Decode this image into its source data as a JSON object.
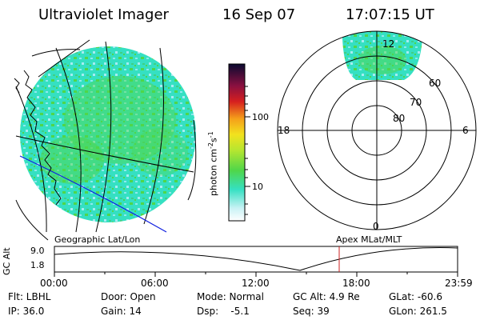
{
  "header": {
    "instrument": "Ultraviolet Imager",
    "date": "16 Sep 07",
    "time": "17:07:15 UT"
  },
  "colors": {
    "aurora_teal": "#35e0c2",
    "aurora_green": "#4fd64a",
    "aurora_cyan": "#8ee9ef",
    "grid_blue": "#1020e0",
    "marker_red": "#cc2020"
  },
  "colorbar": {
    "unit_label": "photon cm",
    "unit_sup1": "-2",
    "unit_mid": "s",
    "unit_sup2": "-1",
    "ticks": [
      "100",
      "10"
    ]
  },
  "left_map": {
    "caption": "Geographic Lat/Lon"
  },
  "polar_plot": {
    "caption": "Apex  MLat/MLT",
    "mlt_labels": {
      "top": "12",
      "bottom": "0",
      "left": "18",
      "right": "6"
    },
    "lat_labels": [
      "60",
      "70",
      "80"
    ]
  },
  "altitude_plot": {
    "ylabel": "GC Alt",
    "y_ticks": [
      "9.0",
      "1.8"
    ],
    "x_ticks": [
      "00:00",
      "06:00",
      "12:00",
      "18:00",
      "23:59"
    ],
    "marker_time": "17:07"
  },
  "status": {
    "row1": {
      "filter": "Flt: LBHL",
      "door": "Door: Open",
      "mode": "Mode: Normal",
      "gc_alt": "GC Alt: 4.9 Re",
      "glat": "GLat: -60.6"
    },
    "row2": {
      "ip": "IP: 36.0",
      "gain": "Gain: 14",
      "dsp": "Dsp:    -5.1",
      "seq": "Seq: 39",
      "glon": "GLon: 261.5"
    }
  }
}
